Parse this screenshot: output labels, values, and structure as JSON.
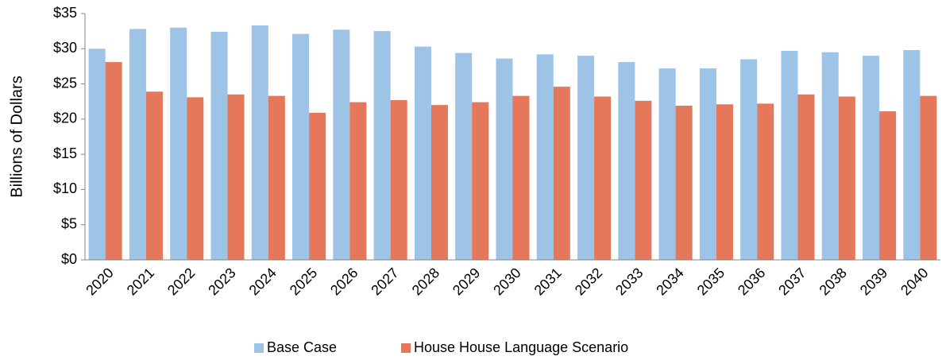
{
  "chart_data": {
    "type": "bar",
    "y_label": "Billions of Dollars",
    "categories": [
      "2020",
      "2021",
      "2022",
      "2023",
      "2024",
      "2025",
      "2026",
      "2027",
      "2028",
      "2029",
      "2030",
      "2031",
      "2032",
      "2033",
      "2034",
      "2035",
      "2036",
      "2037",
      "2038",
      "2039",
      "2040"
    ],
    "series": [
      {
        "name": "Base Case",
        "color": "#9dc3e6",
        "values": [
          30.0,
          32.8,
          33.0,
          32.4,
          33.3,
          32.1,
          32.7,
          32.5,
          30.3,
          29.4,
          28.6,
          29.2,
          29.0,
          28.1,
          27.2,
          27.2,
          28.5,
          29.7,
          29.5,
          29.0,
          29.8
        ]
      },
      {
        "name": "House House Language Scenario",
        "color": "#e5775a",
        "values": [
          28.1,
          23.9,
          23.1,
          23.5,
          23.3,
          20.9,
          22.4,
          22.7,
          22.0,
          22.4,
          23.3,
          24.6,
          23.2,
          22.6,
          21.9,
          22.1,
          22.2,
          23.5,
          23.2,
          21.1,
          23.3
        ]
      }
    ],
    "ylim": [
      0,
      35
    ],
    "yticks": [
      {
        "value": 0,
        "label": "$0"
      },
      {
        "value": 5,
        "label": "$5"
      },
      {
        "value": 10,
        "label": "$10"
      },
      {
        "value": 15,
        "label": "$15"
      },
      {
        "value": 20,
        "label": "$20"
      },
      {
        "value": 25,
        "label": "$25"
      },
      {
        "value": 30,
        "label": "$30"
      },
      {
        "value": 35,
        "label": "$35"
      }
    ],
    "grid": false,
    "legend": "bottom"
  }
}
